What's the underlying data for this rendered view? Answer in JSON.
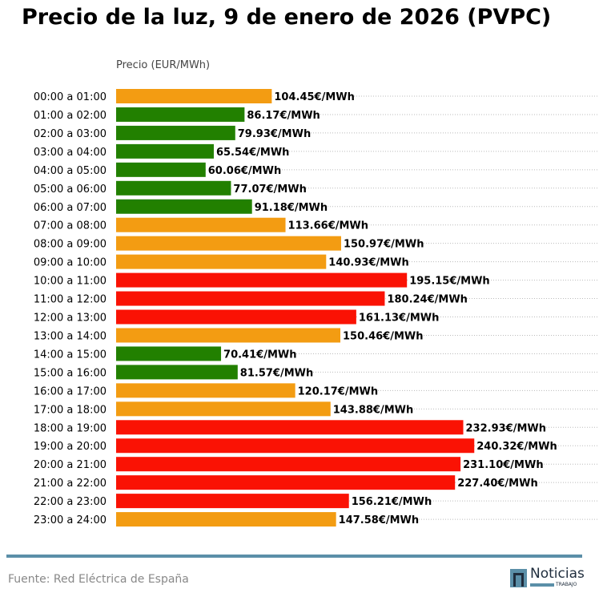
{
  "title": "Precio de la luz, 9 de enero de 2026 (PVPC)",
  "footer": {
    "source": "Fuente: Red Eléctrica de España",
    "logo_text": "Noticias",
    "logo_subtext": "TRABAJO"
  },
  "colors": {
    "low": "#228000",
    "mid": "#f39c12",
    "high": "#fa1204",
    "grid": "#bbbbbb",
    "rule": "#5b8fa8"
  },
  "chart_data": {
    "type": "bar",
    "orientation": "horizontal",
    "title": "Precio de la luz, 9 de enero de 2026 (PVPC)",
    "xlabel": "Precio (EUR/MWh)",
    "value_suffix": "€/MWh",
    "grid": "horizontal dotted",
    "categories": [
      "00:00 a 01:00",
      "01:00 a 02:00",
      "02:00 a 03:00",
      "03:00 a 04:00",
      "04:00 a 05:00",
      "05:00 a 06:00",
      "06:00 a 07:00",
      "07:00 a 08:00",
      "08:00 a 09:00",
      "09:00 a 10:00",
      "10:00 a 11:00",
      "11:00 a 12:00",
      "12:00 a 13:00",
      "13:00 a 14:00",
      "14:00 a 15:00",
      "15:00 a 16:00",
      "16:00 a 17:00",
      "17:00 a 18:00",
      "18:00 a 19:00",
      "19:00 a 20:00",
      "20:00 a 21:00",
      "21:00 a 22:00",
      "22:00 a 23:00",
      "23:00 a 24:00"
    ],
    "values": [
      104.45,
      86.17,
      79.93,
      65.54,
      60.06,
      77.07,
      91.18,
      113.66,
      150.97,
      140.93,
      195.15,
      180.24,
      161.13,
      150.46,
      70.41,
      81.57,
      120.17,
      143.88,
      232.93,
      240.32,
      231.1,
      227.4,
      156.21,
      147.58
    ],
    "labels": [
      "104.45€/MWh",
      "86.17€/MWh",
      "79.93€/MWh",
      "65.54€/MWh",
      "60.06€/MWh",
      "77.07€/MWh",
      "91.18€/MWh",
      "113.66€/MWh",
      "150.97€/MWh",
      "140.93€/MWh",
      "195.15€/MWh",
      "180.24€/MWh",
      "161.13€/MWh",
      "150.46€/MWh",
      "70.41€/MWh",
      "81.57€/MWh",
      "120.17€/MWh",
      "143.88€/MWh",
      "232.93€/MWh",
      "240.32€/MWh",
      "231.10€/MWh",
      "227.40€/MWh",
      "156.21€/MWh",
      "147.58€/MWh"
    ],
    "bar_colors": [
      "mid",
      "low",
      "low",
      "low",
      "low",
      "low",
      "low",
      "mid",
      "mid",
      "mid",
      "high",
      "high",
      "high",
      "mid",
      "low",
      "low",
      "mid",
      "mid",
      "high",
      "high",
      "high",
      "high",
      "high",
      "mid"
    ],
    "xlim": [
      0,
      324
    ]
  }
}
